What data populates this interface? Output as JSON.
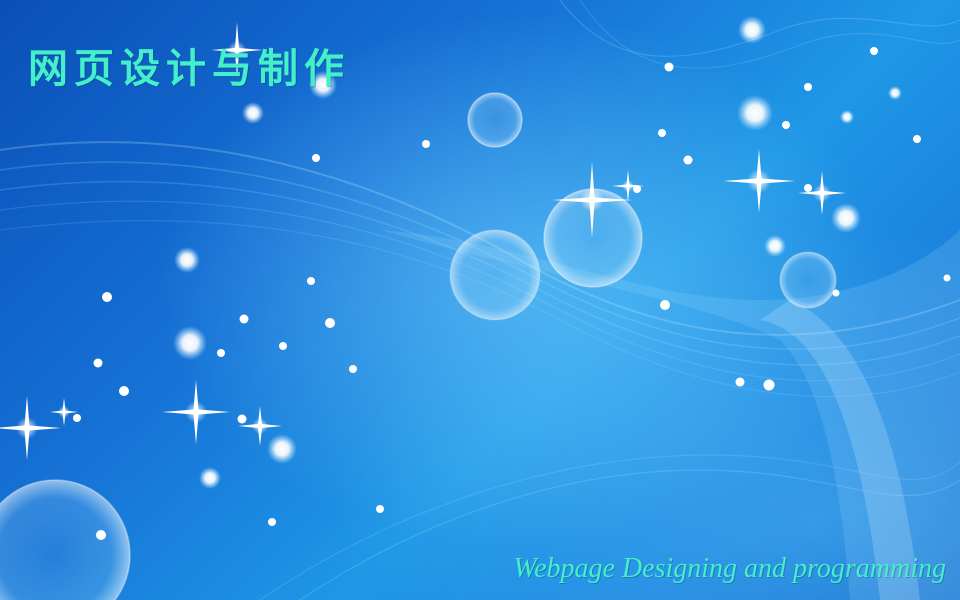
{
  "slide": {
    "title": "网页设计与制作",
    "subtitle": "Webpage Designing and programming"
  },
  "colors": {
    "background_dark": "#0a4fb8",
    "background_light": "#1f97e6",
    "title_text": "#43f0c8"
  }
}
